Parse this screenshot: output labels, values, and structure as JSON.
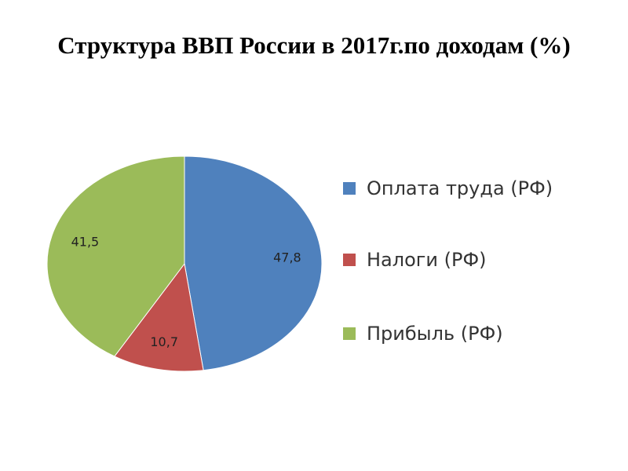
{
  "chart_data": {
    "type": "pie",
    "title": "Структура ВВП России в 2017г.по доходам (%)",
    "categories": [
      "Оплата труда (РФ)",
      "Налоги (РФ)",
      "Прибыль (РФ)"
    ],
    "values": [
      47.8,
      10.7,
      41.5
    ],
    "value_labels": [
      "47,8",
      "10,7",
      "41,5"
    ],
    "colors": [
      "#4f81bd",
      "#c0504d",
      "#9bbb59"
    ],
    "legend": "right"
  }
}
